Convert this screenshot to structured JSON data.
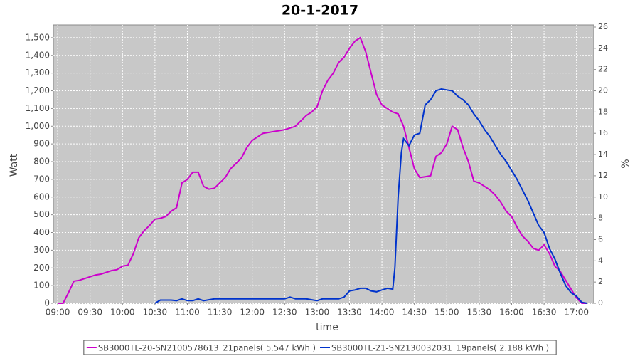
{
  "chart_data": {
    "type": "line",
    "title": "20-1-2017",
    "x_label": "time",
    "y_label": "Watt",
    "y2_label": "%",
    "xlim": [
      "08:56",
      "17:16"
    ],
    "ylim": [
      0,
      1572
    ],
    "y2lim": [
      0,
      26.2
    ],
    "grid": true,
    "background": "#c8c8c8",
    "legend": "bottom",
    "xticks": [
      "09:00",
      "09:30",
      "10:00",
      "10:30",
      "11:00",
      "11:30",
      "12:00",
      "12:30",
      "13:00",
      "13:30",
      "14:00",
      "14:30",
      "15:00",
      "15:30",
      "16:00",
      "16:30",
      "17:00"
    ],
    "yticks": [
      0,
      100,
      200,
      300,
      400,
      500,
      600,
      700,
      800,
      900,
      {
        "value": 1000,
        "label": "1,000"
      },
      {
        "value": 1100,
        "label": "1,100"
      },
      {
        "value": 1200,
        "label": "1,200"
      },
      {
        "value": 1300,
        "label": "1,300"
      },
      {
        "value": 1400,
        "label": "1,400"
      },
      {
        "value": 1500,
        "label": "1,500"
      }
    ],
    "y2ticks": [
      0,
      2,
      4,
      6,
      8,
      10,
      12,
      14,
      16,
      18,
      20,
      22,
      24,
      26
    ],
    "series": [
      {
        "name": "SB3000TL-20-SN2100578613_21panels( 5.547 kWh )",
        "color": "#cc00cc",
        "x": [
          "09:00",
          "09:05",
          "09:10",
          "09:15",
          "09:20",
          "09:25",
          "09:30",
          "09:35",
          "09:40",
          "09:45",
          "09:50",
          "09:55",
          "10:00",
          "10:05",
          "10:10",
          "10:15",
          "10:20",
          "10:25",
          "10:30",
          "10:35",
          "10:40",
          "10:45",
          "10:50",
          "10:55",
          "11:00",
          "11:05",
          "11:10",
          "11:15",
          "11:20",
          "11:25",
          "11:30",
          "11:35",
          "11:40",
          "11:45",
          "11:50",
          "11:55",
          "12:00",
          "12:05",
          "12:10",
          "12:15",
          "12:20",
          "12:25",
          "12:30",
          "12:35",
          "12:40",
          "12:45",
          "12:50",
          "12:55",
          "13:00",
          "13:05",
          "13:10",
          "13:15",
          "13:20",
          "13:25",
          "13:30",
          "13:35",
          "13:40",
          "13:45",
          "13:50",
          "13:55",
          "14:00",
          "14:05",
          "14:10",
          "14:15",
          "14:20",
          "14:25",
          "14:30",
          "14:35",
          "14:40",
          "14:45",
          "14:50",
          "14:55",
          "15:00",
          "15:05",
          "15:10",
          "15:15",
          "15:20",
          "15:25",
          "15:30",
          "15:35",
          "15:40",
          "15:45",
          "15:50",
          "15:55",
          "16:00",
          "16:05",
          "16:10",
          "16:15",
          "16:20",
          "16:25",
          "16:30",
          "16:35",
          "16:40",
          "16:45",
          "16:50",
          "16:55",
          "17:00",
          "17:05",
          "17:10"
        ],
        "values": [
          0,
          0,
          60,
          125,
          130,
          140,
          150,
          160,
          165,
          175,
          185,
          190,
          210,
          215,
          280,
          370,
          410,
          440,
          475,
          480,
          490,
          520,
          540,
          680,
          700,
          740,
          740,
          660,
          645,
          650,
          680,
          710,
          760,
          790,
          820,
          880,
          920,
          940,
          960,
          965,
          970,
          975,
          980,
          990,
          1000,
          1030,
          1060,
          1080,
          1110,
          1200,
          1260,
          1300,
          1360,
          1390,
          1440,
          1480,
          1500,
          1420,
          1300,
          1180,
          1120,
          1100,
          1080,
          1070,
          1000,
          880,
          760,
          710,
          715,
          720,
          830,
          850,
          900,
          1000,
          980,
          880,
          800,
          690,
          680,
          660,
          640,
          610,
          570,
          520,
          490,
          430,
          380,
          350,
          310,
          300,
          330,
          280,
          210,
          180,
          130,
          80,
          30,
          0,
          0
        ]
      },
      {
        "name": "SB3000TL-21-SN2130032031_19panels( 2.188 kWh )",
        "color": "#0033cc",
        "x": [
          "10:30",
          "10:35",
          "10:45",
          "10:50",
          "10:55",
          "11:00",
          "11:05",
          "11:10",
          "11:15",
          "11:25",
          "11:30",
          "11:40",
          "12:30",
          "12:35",
          "12:40",
          "12:50",
          "13:00",
          "13:05",
          "13:20",
          "13:25",
          "13:30",
          "13:35",
          "13:40",
          "13:45",
          "13:50",
          "13:55",
          "14:00",
          "14:05",
          "14:10",
          "14:12",
          "14:15",
          "14:18",
          "14:20",
          "14:25",
          "14:30",
          "14:35",
          "14:40",
          "14:45",
          "14:50",
          "14:55",
          "15:00",
          "15:05",
          "15:10",
          "15:15",
          "15:20",
          "15:25",
          "15:30",
          "15:35",
          "15:40",
          "15:45",
          "15:50",
          "15:55",
          "16:00",
          "16:05",
          "16:10",
          "16:15",
          "16:20",
          "16:25",
          "16:30",
          "16:35",
          "16:40",
          "16:45",
          "16:50",
          "16:55",
          "17:00",
          "17:05",
          "17:10"
        ],
        "values": [
          0,
          18,
          18,
          15,
          25,
          15,
          15,
          25,
          15,
          25,
          25,
          25,
          25,
          35,
          25,
          25,
          15,
          25,
          25,
          35,
          70,
          75,
          85,
          85,
          70,
          65,
          75,
          85,
          80,
          200,
          600,
          850,
          930,
          890,
          950,
          960,
          1120,
          1150,
          1200,
          1210,
          1205,
          1200,
          1170,
          1150,
          1120,
          1070,
          1030,
          980,
          940,
          890,
          840,
          800,
          750,
          700,
          640,
          580,
          510,
          440,
          400,
          310,
          250,
          170,
          100,
          60,
          40,
          5,
          0
        ]
      }
    ]
  }
}
